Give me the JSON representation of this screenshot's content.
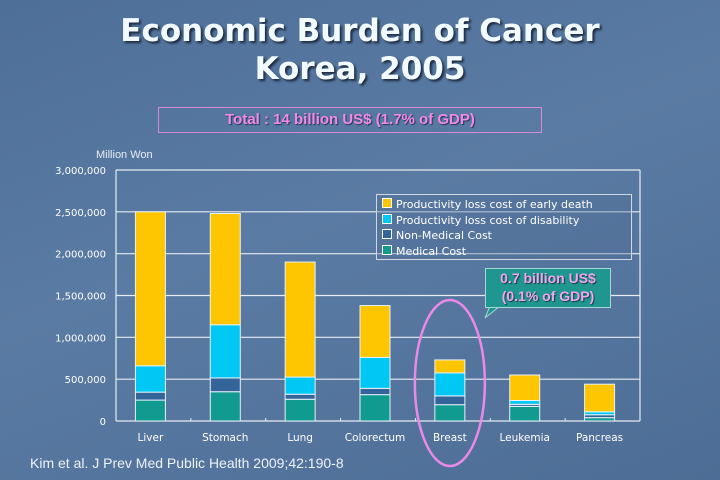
{
  "slide": {
    "title_line1": "Economic Burden of Cancer",
    "title_line2": "Korea, 2005",
    "total_box": "Total : 14 billion US$ (1.7% of GDP)",
    "unit_label": "Million Won",
    "callout_line1": "0.7 billion US$",
    "callout_line2": "(0.1% of GDP)",
    "citation": "Kim et al. J Prev Med Public Health 2009;42:190-8"
  },
  "chart_data": {
    "type": "bar",
    "stacked": true,
    "title": "Economic Burden of Cancer Korea, 2005",
    "ylabel": "Million Won",
    "xlabel": "",
    "ylim": [
      0,
      3000000
    ],
    "yticks": [
      0,
      500000,
      1000000,
      1500000,
      2000000,
      2500000,
      3000000
    ],
    "ytick_labels": [
      "0",
      "500,000",
      "1,000,000",
      "1,500,000",
      "2,000,000",
      "2,500,000",
      "3,000,000"
    ],
    "grid": true,
    "legend_position": "top-right",
    "categories": [
      "Liver",
      "Stomach",
      "Lung",
      "Colorectum",
      "Breast",
      "Leukemia",
      "Pancreas"
    ],
    "highlight_category": "Breast",
    "series": [
      {
        "name": "Medical Cost",
        "color": "#119a8f",
        "values": [
          250000,
          350000,
          260000,
          315000,
          195000,
          175000,
          40000
        ]
      },
      {
        "name": "Non-Medical Cost",
        "color": "#33659a",
        "values": [
          95000,
          165000,
          60000,
          75000,
          105000,
          25000,
          35000
        ]
      },
      {
        "name": "Productivity loss cost of disability",
        "color": "#00c8f5",
        "values": [
          315000,
          635000,
          205000,
          370000,
          275000,
          45000,
          35000
        ]
      },
      {
        "name": "Productivity loss cost of early death",
        "color": "#fec600",
        "values": [
          1840000,
          1330000,
          1375000,
          620000,
          155000,
          305000,
          330000
        ]
      }
    ],
    "legend_order": [
      "Productivity loss cost of early death",
      "Productivity loss cost of disability",
      "Non-Medical Cost",
      "Medical Cost"
    ]
  }
}
